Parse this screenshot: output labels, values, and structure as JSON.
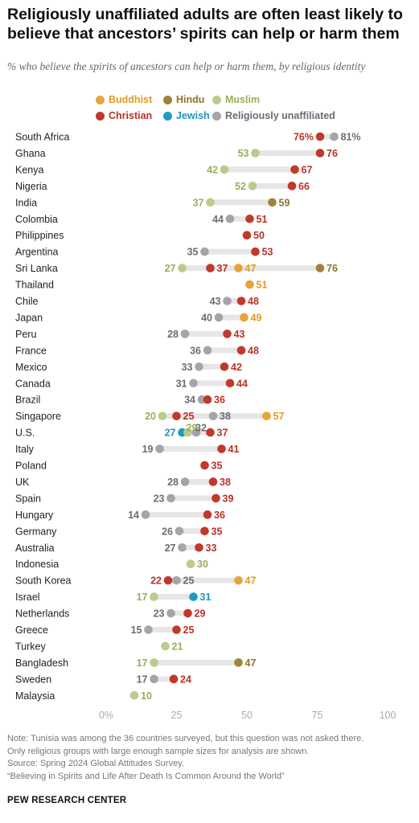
{
  "header": {
    "title": "Religiously unaffiliated adults are often least likely to believe that ancestors’ spirits can help or harm them",
    "subtitle": "% who believe the spirits of ancestors can help or harm them, by religious identity"
  },
  "colors": {
    "Buddhist": "#e8a33a",
    "Hindu": "#a0823c",
    "Muslim": "#b9cc8c",
    "Christian": "#c0392b",
    "Jewish": "#1f9bc2",
    "Religiously unaffiliated": "#a7a3ab",
    "range_bar": "#e6e6e6",
    "axis_text": "#aaaaaa"
  },
  "label_colors": {
    "Buddhist": "#e39a21",
    "Hindu": "#8e7330",
    "Muslim": "#97ad5c",
    "Christian": "#b83226",
    "Jewish": "#1f95bd",
    "Religiously unaffiliated": "#6e6a75"
  },
  "chart_data": {
    "type": "dot-plot",
    "title": "Religiously unaffiliated adults are often least likely to believe that ancestors’ spirits can help or harm them",
    "subtitle": "% who believe the spirits of ancestors can help or harm them, by religious identity",
    "legend": [
      "Buddhist",
      "Hindu",
      "Muslim",
      "Christian",
      "Jewish",
      "Religiously unaffiliated"
    ],
    "legend_placement": "top",
    "xlim": [
      0,
      100
    ],
    "x_ticks": [
      0,
      25,
      50,
      75,
      100
    ],
    "x_tick_labels": [
      "0%",
      "25",
      "50",
      "75",
      "100"
    ],
    "grid": false,
    "categories": [
      "South Africa",
      "Ghana",
      "Kenya",
      "Nigeria",
      "India",
      "Colombia",
      "Philippines",
      "Argentina",
      "Sri Lanka",
      "Thailand",
      "Chile",
      "Japan",
      "Peru",
      "France",
      "Mexico",
      "Canada",
      "Brazil",
      "Singapore",
      "U.S.",
      "Italy",
      "Poland",
      "UK",
      "Spain",
      "Hungary",
      "Germany",
      "Australia",
      "Indonesia",
      "South Korea",
      "Israel",
      "Netherlands",
      "Greece",
      "Turkey",
      "Bangladesh",
      "Sweden",
      "Malaysia"
    ],
    "rows": [
      {
        "country": "South Africa",
        "values": {
          "Christian": 76,
          "Religiously unaffiliated": 81
        },
        "labels": {
          "Christian": "76%",
          "Religiously unaffiliated": "81%"
        }
      },
      {
        "country": "Ghana",
        "values": {
          "Muslim": 53,
          "Christian": 76
        }
      },
      {
        "country": "Kenya",
        "values": {
          "Muslim": 42,
          "Christian": 67
        }
      },
      {
        "country": "Nigeria",
        "values": {
          "Muslim": 52,
          "Christian": 66
        }
      },
      {
        "country": "India",
        "values": {
          "Muslim": 37,
          "Hindu": 59
        }
      },
      {
        "country": "Colombia",
        "values": {
          "Religiously unaffiliated": 44,
          "Christian": 51
        }
      },
      {
        "country": "Philippines",
        "values": {
          "Christian": 50
        }
      },
      {
        "country": "Argentina",
        "values": {
          "Religiously unaffiliated": 35,
          "Christian": 53
        }
      },
      {
        "country": "Sri Lanka",
        "values": {
          "Muslim": 27,
          "Christian": 37,
          "Buddhist": 47,
          "Hindu": 76
        }
      },
      {
        "country": "Thailand",
        "values": {
          "Buddhist": 51
        }
      },
      {
        "country": "Chile",
        "values": {
          "Religiously unaffiliated": 43,
          "Christian": 48
        }
      },
      {
        "country": "Japan",
        "values": {
          "Religiously unaffiliated": 40,
          "Buddhist": 49
        }
      },
      {
        "country": "Peru",
        "values": {
          "Religiously unaffiliated": 28,
          "Christian": 43
        }
      },
      {
        "country": "France",
        "values": {
          "Religiously unaffiliated": 36,
          "Christian": 48
        }
      },
      {
        "country": "Mexico",
        "values": {
          "Religiously unaffiliated": 33,
          "Christian": 42
        }
      },
      {
        "country": "Canada",
        "values": {
          "Religiously unaffiliated": 31,
          "Christian": 44
        }
      },
      {
        "country": "Brazil",
        "values": {
          "Religiously unaffiliated": 34,
          "Christian": 36
        }
      },
      {
        "country": "Singapore",
        "values": {
          "Muslim": 20,
          "Christian": 25,
          "Religiously unaffiliated": 38,
          "Buddhist": 57
        }
      },
      {
        "country": "U.S.",
        "values": {
          "Jewish": 27,
          "Muslim": 29,
          "Religiously unaffiliated": 32,
          "Christian": 37
        }
      },
      {
        "country": "Italy",
        "values": {
          "Religiously unaffiliated": 19,
          "Christian": 41
        }
      },
      {
        "country": "Poland",
        "values": {
          "Christian": 35
        }
      },
      {
        "country": "UK",
        "values": {
          "Religiously unaffiliated": 28,
          "Christian": 38
        }
      },
      {
        "country": "Spain",
        "values": {
          "Religiously unaffiliated": 23,
          "Christian": 39
        }
      },
      {
        "country": "Hungary",
        "values": {
          "Religiously unaffiliated": 14,
          "Christian": 36
        }
      },
      {
        "country": "Germany",
        "values": {
          "Religiously unaffiliated": 26,
          "Christian": 35
        }
      },
      {
        "country": "Australia",
        "values": {
          "Religiously unaffiliated": 27,
          "Christian": 33
        }
      },
      {
        "country": "Indonesia",
        "values": {
          "Muslim": 30
        }
      },
      {
        "country": "South Korea",
        "values": {
          "Christian": 22,
          "Religiously unaffiliated": 25,
          "Buddhist": 47
        }
      },
      {
        "country": "Israel",
        "values": {
          "Muslim": 17,
          "Jewish": 31
        }
      },
      {
        "country": "Netherlands",
        "values": {
          "Religiously unaffiliated": 23,
          "Christian": 29
        }
      },
      {
        "country": "Greece",
        "values": {
          "Religiously unaffiliated": 15,
          "Christian": 25
        }
      },
      {
        "country": "Turkey",
        "values": {
          "Muslim": 21
        }
      },
      {
        "country": "Bangladesh",
        "values": {
          "Muslim": 17,
          "Hindu": 47
        }
      },
      {
        "country": "Sweden",
        "values": {
          "Religiously unaffiliated": 17,
          "Christian": 24
        }
      },
      {
        "country": "Malaysia",
        "values": {
          "Muslim": 10
        }
      }
    ]
  },
  "notes": {
    "line1": "Note: Tunisia was among the 36 countries surveyed, but this question was not asked there.",
    "line2": "Only religious groups with large enough sample sizes for analysis are shown.",
    "line3": "Source: Spring 2024 Global Attitudes Survey.",
    "line4": "“Believing in Spirits and Life After Death Is Common Around the World”"
  },
  "footer": {
    "org": "PEW RESEARCH CENTER"
  }
}
